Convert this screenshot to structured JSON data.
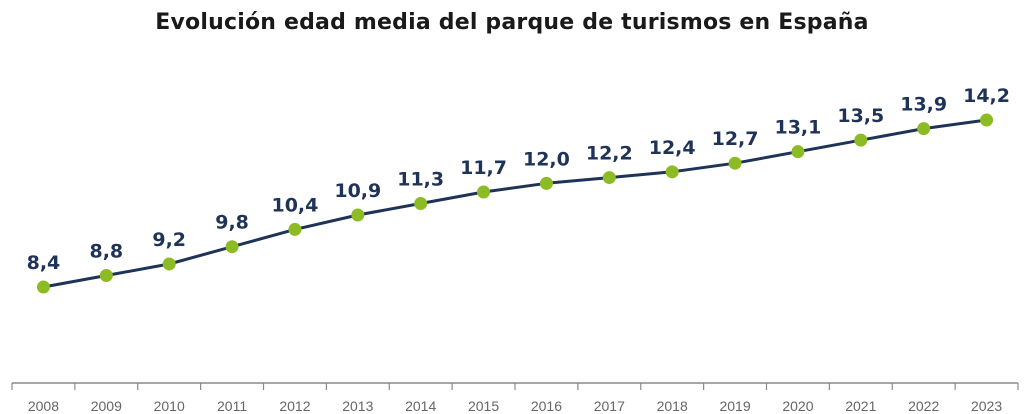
{
  "chart_data": {
    "type": "line",
    "title": "Evolución edad media del parque de turismos en España",
    "x": [
      "2008",
      "2009",
      "2010",
      "2011",
      "2012",
      "2013",
      "2014",
      "2015",
      "2016",
      "2017",
      "2018",
      "2019",
      "2020",
      "2021",
      "2022",
      "2023"
    ],
    "values": [
      8.4,
      8.8,
      9.2,
      9.8,
      10.4,
      10.9,
      11.3,
      11.7,
      12.0,
      12.2,
      12.4,
      12.7,
      13.1,
      13.5,
      13.9,
      14.2
    ],
    "data_labels": [
      "8,4",
      "8,8",
      "9,2",
      "9,8",
      "10,4",
      "10,9",
      "11,3",
      "11,7",
      "12,0",
      "12,2",
      "12,4",
      "12,7",
      "13,1",
      "13,5",
      "13,9",
      "14,2"
    ],
    "xlabel": "",
    "ylabel": "",
    "y_axis_visible": false,
    "grid": false,
    "line_color": "#1f3358",
    "marker_color": "#8dbb24",
    "label_color": "#1f3358"
  }
}
